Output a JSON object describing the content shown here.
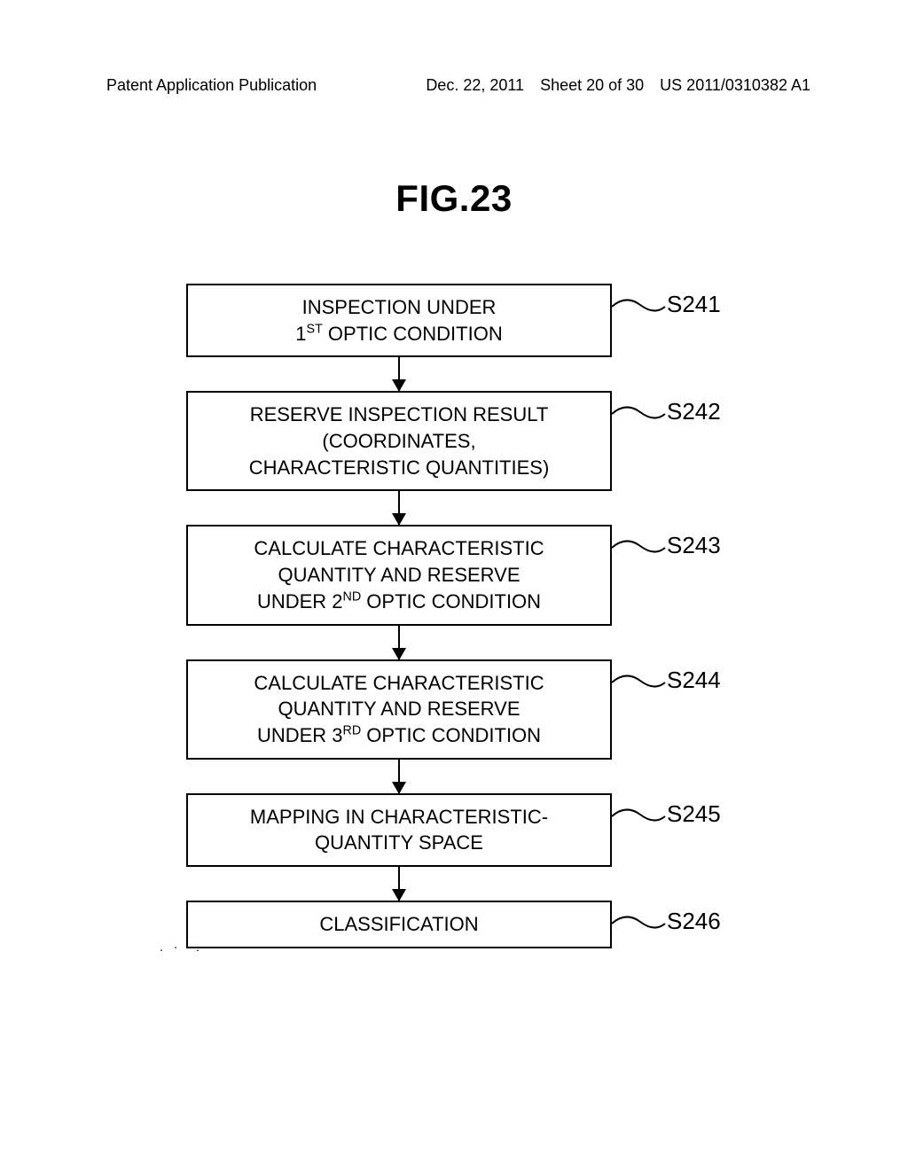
{
  "header": {
    "left": "Patent Application Publication",
    "date": "Dec. 22, 2011",
    "sheet": "Sheet 20 of 30",
    "pubno": "US 2011/0310382 A1"
  },
  "figure_title": "FIG.23",
  "flowchart": {
    "arrow_height": 38,
    "box_border_color": "#000000",
    "background": "#ffffff",
    "text_color": "#000000",
    "font_size": 22,
    "steps": [
      {
        "label_lines": [
          "INSPECTION UNDER",
          "1<sup>ST</sup> OPTIC CONDITION"
        ],
        "ref": "S241"
      },
      {
        "label_lines": [
          "RESERVE INSPECTION RESULT",
          "(COORDINATES,",
          "CHARACTERISTIC QUANTITIES)"
        ],
        "ref": "S242"
      },
      {
        "label_lines": [
          "CALCULATE CHARACTERISTIC",
          "QUANTITY AND RESERVE",
          "UNDER 2<sup>ND</sup> OPTIC CONDITION"
        ],
        "ref": "S243"
      },
      {
        "label_lines": [
          "CALCULATE CHARACTERISTIC",
          "QUANTITY AND RESERVE",
          "UNDER 3<sup>RD</sup> OPTIC CONDITION"
        ],
        "ref": "S244"
      },
      {
        "label_lines": [
          "MAPPING IN CHARACTERISTIC-",
          "QUANTITY SPACE"
        ],
        "ref": "S245"
      },
      {
        "label_lines": [
          "CLASSIFICATION"
        ],
        "ref": "S246"
      }
    ]
  },
  "decorative_dots": ". · ·."
}
